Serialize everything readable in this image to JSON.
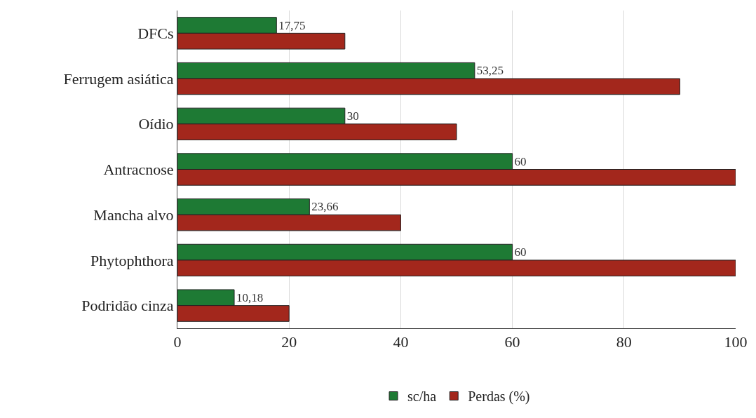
{
  "chart_data": {
    "type": "bar",
    "orientation": "horizontal",
    "categories": [
      "DFCs",
      "Ferrugem asiática",
      "Oídio",
      "Antracnose",
      "Mancha alvo",
      "Phytophthora",
      "Podridão cinza"
    ],
    "series": [
      {
        "name": "sc/ha",
        "color": "#1e7a34",
        "values": [
          17.75,
          53.25,
          30,
          60,
          23.66,
          60,
          10.18
        ],
        "value_labels": [
          "17,75",
          "53,25",
          "30",
          "60",
          "23,66",
          "60",
          "10,18"
        ]
      },
      {
        "name": "Perdas (%)",
        "color": "#a3271c",
        "values": [
          30,
          90,
          50,
          100,
          40,
          100,
          20
        ]
      }
    ],
    "xlim": [
      0,
      100
    ],
    "xticks": [
      0,
      20,
      40,
      60,
      80,
      100
    ],
    "grid": "x",
    "legend": "bottom"
  }
}
